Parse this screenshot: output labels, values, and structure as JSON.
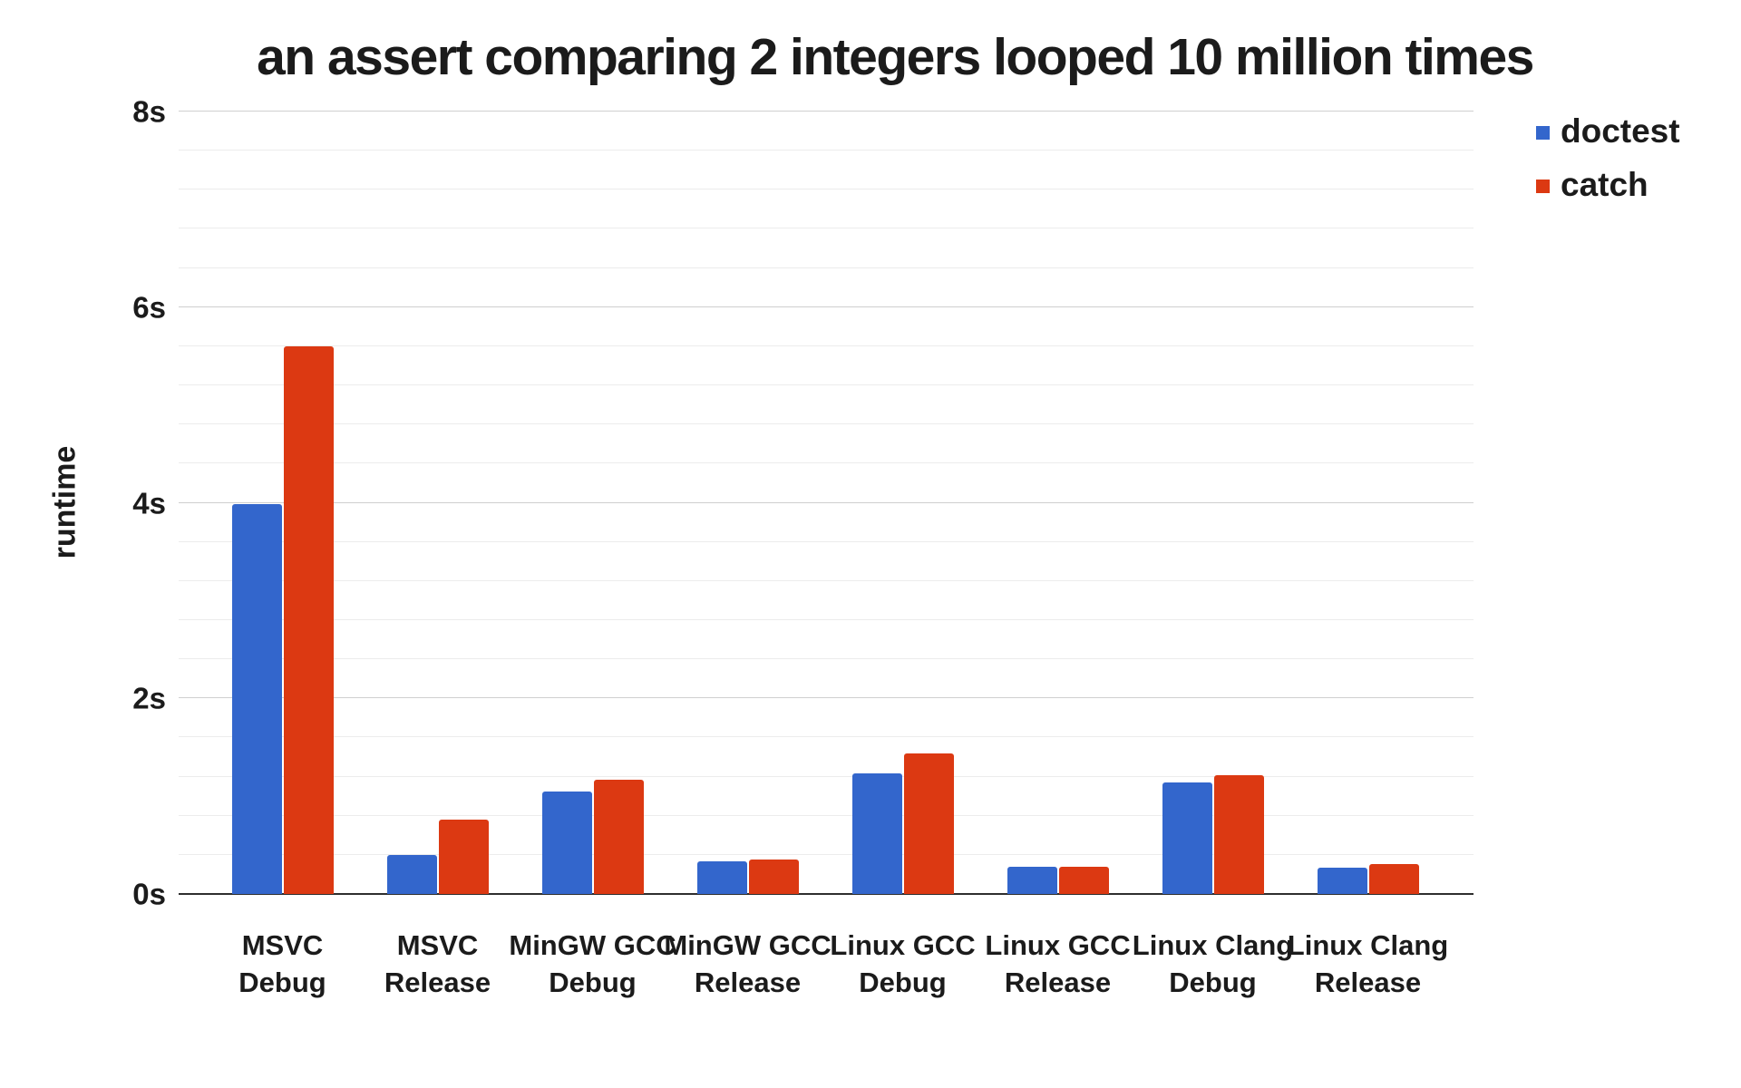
{
  "chart_data": {
    "type": "bar",
    "title": "an assert comparing 2 integers looped 10 million times",
    "ylabel": "runtime",
    "xlabel": "",
    "categories": [
      "MSVC Debug",
      "MSVC Release",
      "MinGW GCC Debug",
      "MinGW GCC Release",
      "Linux GCC Debug",
      "Linux GCC Release",
      "Linux Clang Debug",
      "Linux Clang Release"
    ],
    "series": [
      {
        "name": "doctest",
        "color": "#3366cc",
        "values": [
          3.99,
          0.4,
          1.05,
          0.33,
          1.23,
          0.28,
          1.14,
          0.27
        ]
      },
      {
        "name": "catch",
        "color": "#dc3912",
        "values": [
          5.6,
          0.76,
          1.17,
          0.35,
          1.44,
          0.28,
          1.21,
          0.31
        ]
      }
    ],
    "ylim": [
      0,
      8
    ],
    "y_ticks": [
      {
        "value": 0,
        "label": "0s"
      },
      {
        "value": 2,
        "label": "2s"
      },
      {
        "value": 4,
        "label": "4s"
      },
      {
        "value": 6,
        "label": "6s"
      },
      {
        "value": 8,
        "label": "8s"
      }
    ],
    "minor_step": 0.4,
    "major_step": 2,
    "grid": true,
    "legend_position": "right"
  }
}
